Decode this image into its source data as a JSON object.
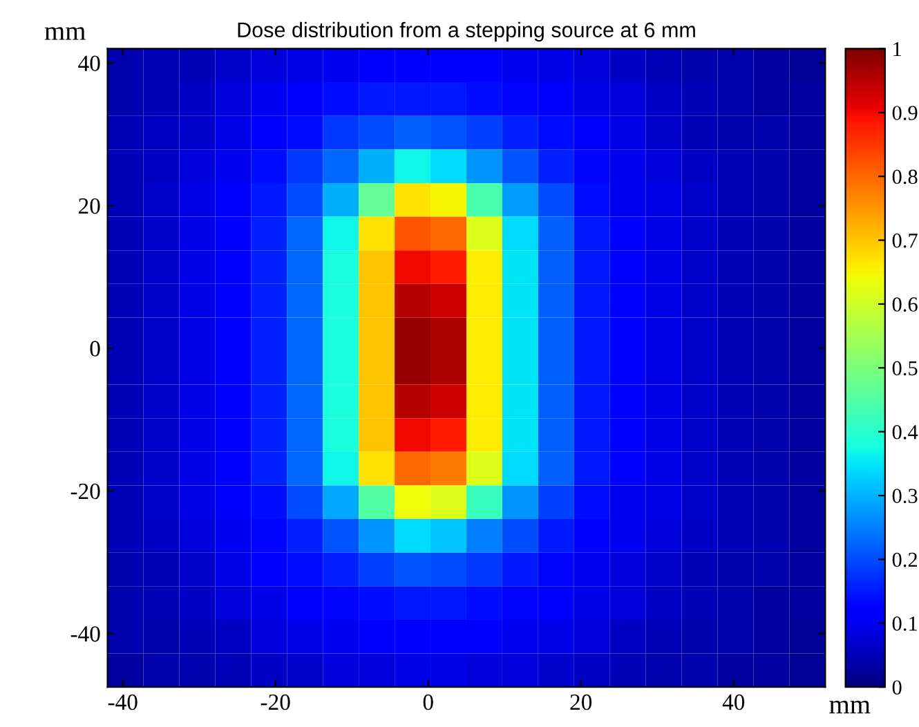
{
  "chart_data": {
    "type": "heatmap",
    "title": "Dose distribution from a stepping source at 6 mm",
    "xlabel": "mm",
    "ylabel": "mm",
    "xlim": [
      -42,
      52
    ],
    "ylim": [
      -47.5,
      42
    ],
    "xticks": [
      -40,
      -20,
      0,
      20,
      40
    ],
    "yticks": [
      -40,
      -20,
      0,
      20,
      40
    ],
    "clim": [
      0,
      1
    ],
    "cticks": [
      0,
      0.1,
      0.2,
      0.3,
      0.4,
      0.5,
      0.6,
      0.7,
      0.8,
      0.9,
      1
    ],
    "cells": [
      [
        0.04,
        0.05,
        0.05,
        0.07,
        0.08,
        0.09,
        0.1,
        0.11,
        0.12,
        0.11,
        0.11,
        0.1,
        0.09,
        0.08,
        0.06,
        0.05,
        0.04,
        0.04,
        0.03,
        0.02
      ],
      [
        0.04,
        0.05,
        0.06,
        0.08,
        0.1,
        0.11,
        0.14,
        0.15,
        0.15,
        0.15,
        0.14,
        0.13,
        0.11,
        0.09,
        0.08,
        0.06,
        0.05,
        0.04,
        0.03,
        0.03
      ],
      [
        0.05,
        0.06,
        0.07,
        0.09,
        0.11,
        0.14,
        0.18,
        0.2,
        0.22,
        0.21,
        0.19,
        0.16,
        0.14,
        0.11,
        0.09,
        0.07,
        0.05,
        0.04,
        0.04,
        0.03
      ],
      [
        0.05,
        0.06,
        0.08,
        0.1,
        0.14,
        0.18,
        0.23,
        0.3,
        0.37,
        0.34,
        0.27,
        0.21,
        0.16,
        0.13,
        0.1,
        0.08,
        0.06,
        0.05,
        0.04,
        0.03
      ],
      [
        0.05,
        0.07,
        0.09,
        0.11,
        0.15,
        0.2,
        0.3,
        0.47,
        0.67,
        0.65,
        0.44,
        0.28,
        0.2,
        0.14,
        0.1,
        0.09,
        0.07,
        0.05,
        0.04,
        0.03
      ],
      [
        0.05,
        0.07,
        0.09,
        0.12,
        0.16,
        0.23,
        0.37,
        0.67,
        0.82,
        0.8,
        0.62,
        0.34,
        0.22,
        0.15,
        0.11,
        0.09,
        0.07,
        0.05,
        0.04,
        0.03
      ],
      [
        0.05,
        0.07,
        0.09,
        0.12,
        0.16,
        0.23,
        0.38,
        0.7,
        0.9,
        0.88,
        0.66,
        0.35,
        0.22,
        0.15,
        0.11,
        0.09,
        0.07,
        0.05,
        0.04,
        0.03
      ],
      [
        0.05,
        0.07,
        0.09,
        0.12,
        0.16,
        0.23,
        0.38,
        0.7,
        0.95,
        0.93,
        0.66,
        0.35,
        0.22,
        0.15,
        0.11,
        0.09,
        0.07,
        0.05,
        0.04,
        0.03
      ],
      [
        0.05,
        0.07,
        0.09,
        0.12,
        0.16,
        0.23,
        0.38,
        0.7,
        0.98,
        0.96,
        0.66,
        0.35,
        0.22,
        0.15,
        0.11,
        0.09,
        0.07,
        0.05,
        0.04,
        0.03
      ],
      [
        0.05,
        0.07,
        0.09,
        0.12,
        0.16,
        0.23,
        0.38,
        0.7,
        0.98,
        0.96,
        0.66,
        0.35,
        0.22,
        0.15,
        0.11,
        0.09,
        0.07,
        0.05,
        0.04,
        0.03
      ],
      [
        0.05,
        0.07,
        0.09,
        0.12,
        0.16,
        0.23,
        0.38,
        0.7,
        0.95,
        0.93,
        0.66,
        0.35,
        0.22,
        0.15,
        0.11,
        0.09,
        0.07,
        0.05,
        0.04,
        0.03
      ],
      [
        0.05,
        0.07,
        0.09,
        0.12,
        0.16,
        0.23,
        0.38,
        0.7,
        0.9,
        0.88,
        0.66,
        0.35,
        0.22,
        0.15,
        0.11,
        0.09,
        0.07,
        0.05,
        0.04,
        0.03
      ],
      [
        0.05,
        0.07,
        0.09,
        0.12,
        0.16,
        0.23,
        0.37,
        0.67,
        0.8,
        0.78,
        0.62,
        0.34,
        0.22,
        0.15,
        0.11,
        0.09,
        0.07,
        0.05,
        0.04,
        0.03
      ],
      [
        0.05,
        0.07,
        0.09,
        0.11,
        0.14,
        0.2,
        0.29,
        0.45,
        0.64,
        0.62,
        0.42,
        0.27,
        0.19,
        0.14,
        0.1,
        0.09,
        0.07,
        0.05,
        0.04,
        0.03
      ],
      [
        0.05,
        0.06,
        0.08,
        0.1,
        0.13,
        0.16,
        0.21,
        0.27,
        0.34,
        0.32,
        0.25,
        0.2,
        0.15,
        0.12,
        0.1,
        0.08,
        0.06,
        0.05,
        0.04,
        0.03
      ],
      [
        0.04,
        0.05,
        0.07,
        0.09,
        0.11,
        0.14,
        0.16,
        0.19,
        0.21,
        0.2,
        0.18,
        0.15,
        0.13,
        0.1,
        0.08,
        0.07,
        0.05,
        0.04,
        0.04,
        0.03
      ],
      [
        0.04,
        0.05,
        0.06,
        0.08,
        0.09,
        0.11,
        0.13,
        0.14,
        0.15,
        0.15,
        0.14,
        0.13,
        0.11,
        0.09,
        0.08,
        0.06,
        0.05,
        0.04,
        0.03,
        0.03
      ],
      [
        0.04,
        0.04,
        0.05,
        0.06,
        0.08,
        0.09,
        0.1,
        0.11,
        0.11,
        0.11,
        0.11,
        0.1,
        0.09,
        0.08,
        0.06,
        0.05,
        0.04,
        0.04,
        0.03,
        0.02
      ],
      [
        0.03,
        0.04,
        0.04,
        0.05,
        0.06,
        0.07,
        0.08,
        0.08,
        0.09,
        0.09,
        0.08,
        0.08,
        0.07,
        0.06,
        0.05,
        0.04,
        0.04,
        0.03,
        0.03,
        0.02
      ]
    ]
  }
}
